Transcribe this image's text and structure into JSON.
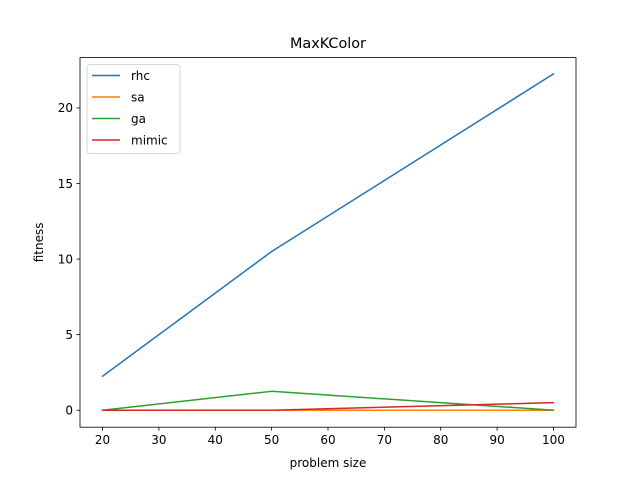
{
  "chart_data": {
    "type": "line",
    "title": "MaxKColor",
    "xlabel": "problem size",
    "ylabel": "fitness",
    "x": [
      20,
      50,
      100
    ],
    "xlim": [
      16,
      104
    ],
    "ylim": [
      -1.125,
      23.33
    ],
    "xticks": [
      20,
      30,
      40,
      50,
      60,
      70,
      80,
      90,
      100
    ],
    "yticks": [
      0,
      5,
      10,
      15,
      20
    ],
    "grid": false,
    "legend_position": "upper left",
    "series": [
      {
        "name": "rhc",
        "color": "#1f77b4",
        "values": [
          2.25,
          10.5,
          22.25
        ]
      },
      {
        "name": "sa",
        "color": "#ff7f0e",
        "values": [
          0,
          0,
          0
        ]
      },
      {
        "name": "ga",
        "color": "#2ca02c",
        "values": [
          0,
          1.25,
          0
        ]
      },
      {
        "name": "mimic",
        "color": "#d62728",
        "values": [
          0,
          0,
          0.5
        ]
      }
    ]
  }
}
